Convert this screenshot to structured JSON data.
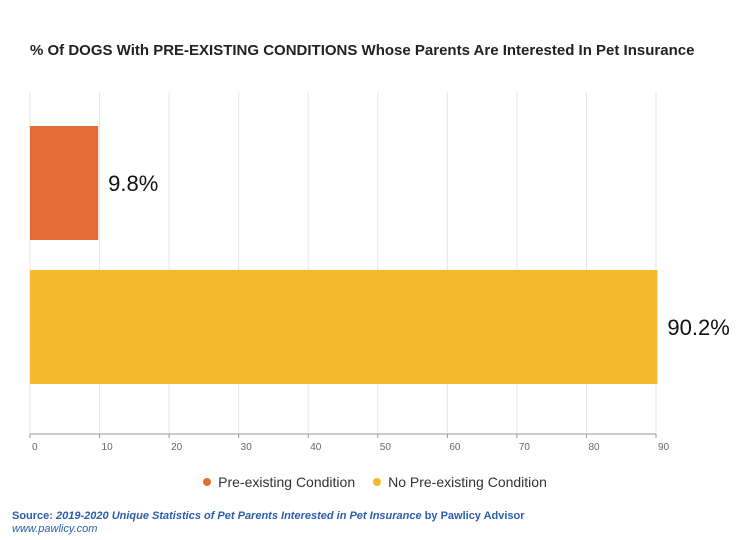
{
  "chart_data": {
    "type": "bar",
    "orientation": "horizontal",
    "title": "% Of DOGS With PRE-EXISTING CONDITIONS Whose Parents Are Interested In Pet Insurance",
    "categories": [
      "Pre-existing Condition",
      "No Pre-existing Condition"
    ],
    "values": [
      9.8,
      90.2
    ],
    "data_labels": [
      "9.8%",
      "90.2%"
    ],
    "colors": [
      "#e26c33",
      "#f4b92e"
    ],
    "xlim": [
      0,
      90
    ],
    "xticks": [
      "0",
      "10",
      "20",
      "30",
      "40",
      "50",
      "60",
      "70",
      "80",
      "90"
    ],
    "grid": true,
    "legend": "bottom-center"
  },
  "source": {
    "prefix": "Source:",
    "title": "2019-2020 Unique Statistics of Pet Parents Interested in Pet Insurance",
    "suffix": "by Pawlicy Advisor",
    "url": "www.pawlicy.com"
  }
}
